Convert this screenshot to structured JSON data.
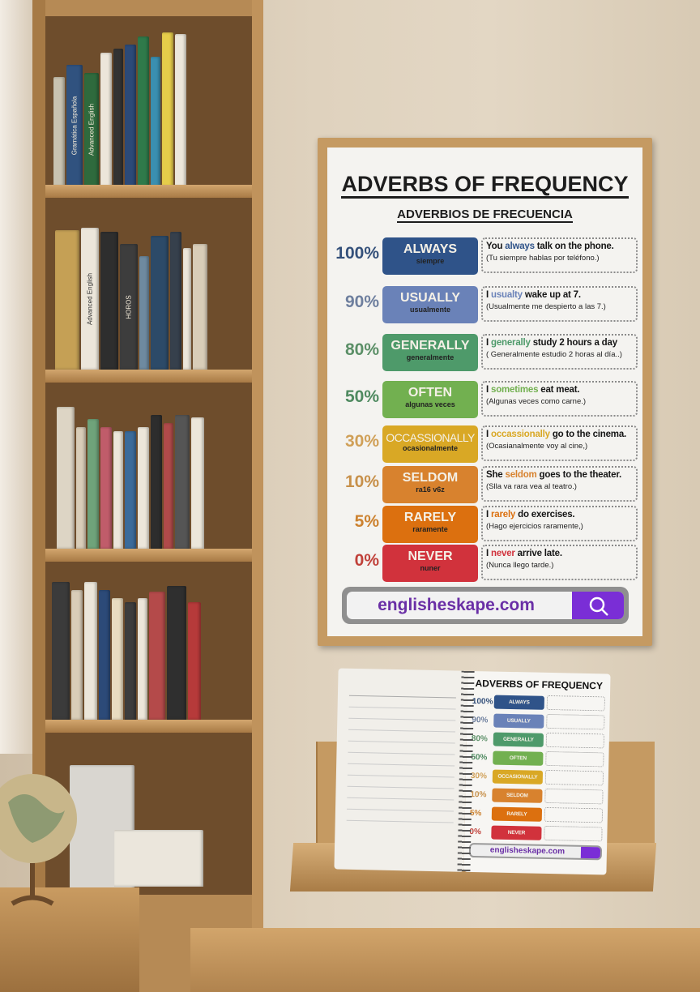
{
  "poster": {
    "title": "ADVERBS OF FREQUENCY",
    "subtitle": "ADVERBIOS DE FRECUENCIA",
    "rows": [
      {
        "percent": "100%",
        "adverb": "ALWAYS",
        "spanish": "siempre",
        "pre": "You ",
        "highlight": "always",
        "post": " talk on the phone.",
        "translation": "(Tu siempre hablas por teléfono.)",
        "color": "#2f5389",
        "pct_color": "#34507a"
      },
      {
        "percent": "90%",
        "adverb": "USUALLY",
        "spanish": "usualmente",
        "pre": "I ",
        "highlight": "usualty",
        "post": " wake up at 7.",
        "translation": "(Usualmente me despierto a las 7.)",
        "color": "#6a82b8",
        "pct_color": "#6e7f9e"
      },
      {
        "percent": "80%",
        "adverb": "GENERALLY",
        "spanish": "generalmente",
        "pre": "I ",
        "highlight": "generally",
        "post": " study 2 hours a day",
        "translation": "( Generalmente estudio 2 horas al día..)",
        "color": "#4e9a6a",
        "pct_color": "#5b8f67"
      },
      {
        "percent": "50%",
        "adverb": "OFTEN",
        "spanish": "algunas veces",
        "pre": "I ",
        "highlight": "sometimes",
        "post": " eat meat.",
        "translation": "(Algunas veces como carne.)",
        "color": "#72b050",
        "pct_color": "#4f8a60"
      },
      {
        "percent": "30%",
        "adverb": "OCCASSIONALLY",
        "spanish": "ocasionalmente",
        "pre": "I ",
        "highlight": "occassionally",
        "post": " go to the cinema.",
        "translation": "(Ocasianalmente voy al cine,)",
        "color": "#d9a825",
        "pct_color": "#d0a058"
      },
      {
        "percent": "10%",
        "adverb": "SELDOM",
        "spanish": "ra16 v6z",
        "pre": "She ",
        "highlight": "seldom",
        "post": " goes to the theater.",
        "translation": "(Slla va rara vea al teatro.)",
        "color": "#d8822e",
        "pct_color": "#c7904a"
      },
      {
        "percent": "5%",
        "adverb": "RARELY",
        "spanish": "raramente",
        "pre": "I ",
        "highlight": "rarely",
        "post": " do exercises.",
        "translation": "(Hago ejercicios raramente,)",
        "color": "#dc700f",
        "pct_color": "#cc8230"
      },
      {
        "percent": "0%",
        "adverb": "NEVER",
        "spanish": "nuner",
        "pre": "I ",
        "highlight": "never",
        "post": " arrive late.",
        "translation": "(Nunca llego tarde.)",
        "color": "#d1323c",
        "pct_color": "#c0413a"
      }
    ],
    "url": "englisheskape.com",
    "search_icon": "magnifier-icon",
    "search_color": "#7a2ed6"
  },
  "notebook": {
    "title": "ADVERBS OF FREQUENCY",
    "rows": [
      {
        "percent": "100%",
        "label": "ALWAYS",
        "color": "#2f5389"
      },
      {
        "percent": "90%",
        "label": "USUALLY",
        "color": "#6a82b8"
      },
      {
        "percent": "80%",
        "label": "GENERALLY",
        "color": "#4e9a6a"
      },
      {
        "percent": "50%",
        "label": "OFTEN",
        "color": "#72b050"
      },
      {
        "percent": "30%",
        "label": "OCCASIONALLY",
        "color": "#d9a825"
      },
      {
        "percent": "10%",
        "label": "SELDOM",
        "color": "#d8822e"
      },
      {
        "percent": "5%",
        "label": "RARELY",
        "color": "#dc700f"
      },
      {
        "percent": "0%",
        "label": "NEVER",
        "color": "#d1323c"
      }
    ],
    "url": "englisheskape.com"
  },
  "books": {
    "spines": [
      "Gramática Española",
      "Advanced English",
      "Advanced English",
      "HOROS"
    ]
  }
}
